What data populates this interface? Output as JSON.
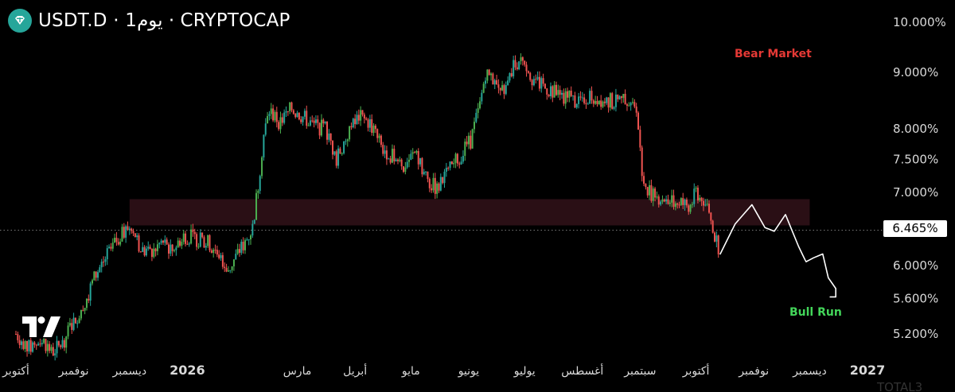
{
  "header": {
    "symbol": "USDT.D",
    "interval": "1يوم",
    "exchange": "CRYPTOCAP",
    "separator": " · ",
    "full_title": "USDT.D · 1يوم · CRYPTOCAP",
    "logo_icon": "tether-diamond-icon"
  },
  "annotations": {
    "bear_label": "Bear Market",
    "bull_label": "Bull Run",
    "bear_color": "#e53935",
    "bull_color": "#43d65a"
  },
  "price_marker": {
    "value": 6.465,
    "label": "6.465%"
  },
  "bottom_truncated": "TOTAL3",
  "colors": {
    "background": "#000000",
    "up": "#26a69a",
    "up_bright": "#4caf50",
    "down": "#ef5350",
    "resistance_zone": "#2a0f15",
    "text": "#ffffff"
  },
  "chart_data": {
    "type": "candlestick",
    "title": "USDT.D · 1يوم · CRYPTOCAP",
    "y_scale": "log",
    "ylim": [
      4.9,
      10.3
    ],
    "y_ticks": [
      {
        "value": 10.0,
        "label": "10.000%"
      },
      {
        "value": 9.0,
        "label": "9.000%"
      },
      {
        "value": 8.0,
        "label": "8.000%"
      },
      {
        "value": 7.5,
        "label": "7.500%"
      },
      {
        "value": 7.0,
        "label": "7.000%"
      },
      {
        "value": 6.0,
        "label": "6.000%"
      },
      {
        "value": 5.6,
        "label": "5.600%"
      },
      {
        "value": 5.2,
        "label": "5.200%"
      }
    ],
    "x_range": [
      "2025-10-01",
      "2027-01-15"
    ],
    "x_ticks": [
      {
        "date": "2025-10-01",
        "label": "أكتوبر",
        "bold": false
      },
      {
        "date": "2025-11-01",
        "label": "نوفمبر",
        "bold": false
      },
      {
        "date": "2025-12-01",
        "label": "ديسمبر",
        "bold": false
      },
      {
        "date": "2026-01-01",
        "label": "2026",
        "bold": true
      },
      {
        "date": "2026-03-01",
        "label": "مارس",
        "bold": false
      },
      {
        "date": "2026-04-01",
        "label": "أبريل",
        "bold": false
      },
      {
        "date": "2026-05-01",
        "label": "مايو",
        "bold": false
      },
      {
        "date": "2026-06-01",
        "label": "يونيو",
        "bold": false
      },
      {
        "date": "2026-07-01",
        "label": "يوليو",
        "bold": false
      },
      {
        "date": "2026-08-01",
        "label": "أغسطس",
        "bold": false
      },
      {
        "date": "2026-09-01",
        "label": "سبتمبر",
        "bold": false
      },
      {
        "date": "2026-10-01",
        "label": "أكتوبر",
        "bold": false
      },
      {
        "date": "2026-11-01",
        "label": "نوفمبر",
        "bold": false
      },
      {
        "date": "2026-12-01",
        "label": "ديسمبر",
        "bold": false
      },
      {
        "date": "2027-01-01",
        "label": "2027",
        "bold": true
      }
    ],
    "price_path": [
      [
        "2025-10-01",
        5.2
      ],
      [
        "2025-10-08",
        5.05
      ],
      [
        "2025-10-15",
        5.15
      ],
      [
        "2025-10-20",
        5.0
      ],
      [
        "2025-10-26",
        5.1
      ],
      [
        "2025-11-01",
        5.35
      ],
      [
        "2025-11-06",
        5.5
      ],
      [
        "2025-11-12",
        5.85
      ],
      [
        "2025-11-18",
        6.1
      ],
      [
        "2025-11-25",
        6.35
      ],
      [
        "2025-12-02",
        6.55
      ],
      [
        "2025-12-07",
        6.2
      ],
      [
        "2025-12-12",
        6.15
      ],
      [
        "2025-12-18",
        6.3
      ],
      [
        "2025-12-24",
        6.2
      ],
      [
        "2025-12-30",
        6.4
      ],
      [
        "2026-01-06",
        6.35
      ],
      [
        "2026-01-12",
        6.3
      ],
      [
        "2026-01-18",
        6.15
      ],
      [
        "2026-01-23",
        5.95
      ],
      [
        "2026-01-28",
        6.15
      ],
      [
        "2026-02-02",
        6.35
      ],
      [
        "2026-02-05",
        6.5
      ],
      [
        "2026-02-08",
        7.1
      ],
      [
        "2026-02-11",
        7.9
      ],
      [
        "2026-02-14",
        8.3
      ],
      [
        "2026-02-20",
        8.1
      ],
      [
        "2026-02-26",
        8.35
      ],
      [
        "2026-03-04",
        8.2
      ],
      [
        "2026-03-10",
        8.05
      ],
      [
        "2026-03-16",
        8.0
      ],
      [
        "2026-03-22",
        7.5
      ],
      [
        "2026-03-28",
        7.9
      ],
      [
        "2026-04-03",
        8.2
      ],
      [
        "2026-04-09",
        8.1
      ],
      [
        "2026-04-15",
        7.7
      ],
      [
        "2026-04-21",
        7.55
      ],
      [
        "2026-04-27",
        7.4
      ],
      [
        "2026-05-03",
        7.6
      ],
      [
        "2026-05-09",
        7.2
      ],
      [
        "2026-05-15",
        7.05
      ],
      [
        "2026-05-21",
        7.3
      ],
      [
        "2026-05-27",
        7.55
      ],
      [
        "2026-06-02",
        7.8
      ],
      [
        "2026-06-07",
        8.4
      ],
      [
        "2026-06-10",
        9.0
      ],
      [
        "2026-06-15",
        8.8
      ],
      [
        "2026-06-20",
        8.6
      ],
      [
        "2026-06-25",
        9.1
      ],
      [
        "2026-06-30",
        9.3
      ],
      [
        "2026-07-05",
        8.9
      ],
      [
        "2026-07-12",
        8.7
      ],
      [
        "2026-07-20",
        8.6
      ],
      [
        "2026-07-28",
        8.5
      ],
      [
        "2026-08-05",
        8.55
      ],
      [
        "2026-08-13",
        8.5
      ],
      [
        "2026-08-20",
        8.45
      ],
      [
        "2026-08-26",
        8.55
      ],
      [
        "2026-08-30",
        8.4
      ],
      [
        "2026-09-02",
        7.2
      ],
      [
        "2026-09-08",
        6.95
      ],
      [
        "2026-09-15",
        6.9
      ],
      [
        "2026-09-22",
        6.85
      ],
      [
        "2026-09-28",
        6.8
      ],
      [
        "2026-10-01",
        7.0
      ],
      [
        "2026-10-05",
        6.9
      ],
      [
        "2026-10-08",
        6.7
      ],
      [
        "2026-10-11",
        6.35
      ],
      [
        "2026-10-13",
        6.25
      ]
    ],
    "resistance_zone": {
      "from": "2025-12-01",
      "to": "2026-12-01",
      "low": 6.53,
      "high": 6.9
    },
    "projection_path": [
      [
        "2026-10-14",
        6.15
      ],
      [
        "2026-10-22",
        6.55
      ],
      [
        "2026-10-31",
        6.82
      ],
      [
        "2026-11-07",
        6.5
      ],
      [
        "2026-11-12",
        6.45
      ],
      [
        "2026-11-18",
        6.68
      ],
      [
        "2026-11-25",
        6.25
      ],
      [
        "2026-11-29",
        6.05
      ],
      [
        "2026-12-03",
        6.1
      ],
      [
        "2026-12-08",
        6.15
      ],
      [
        "2026-12-11",
        5.85
      ],
      [
        "2026-12-15",
        5.72
      ],
      [
        "2026-12-15",
        5.62
      ],
      [
        "2026-12-12",
        5.62
      ]
    ],
    "current_value": 6.465
  }
}
